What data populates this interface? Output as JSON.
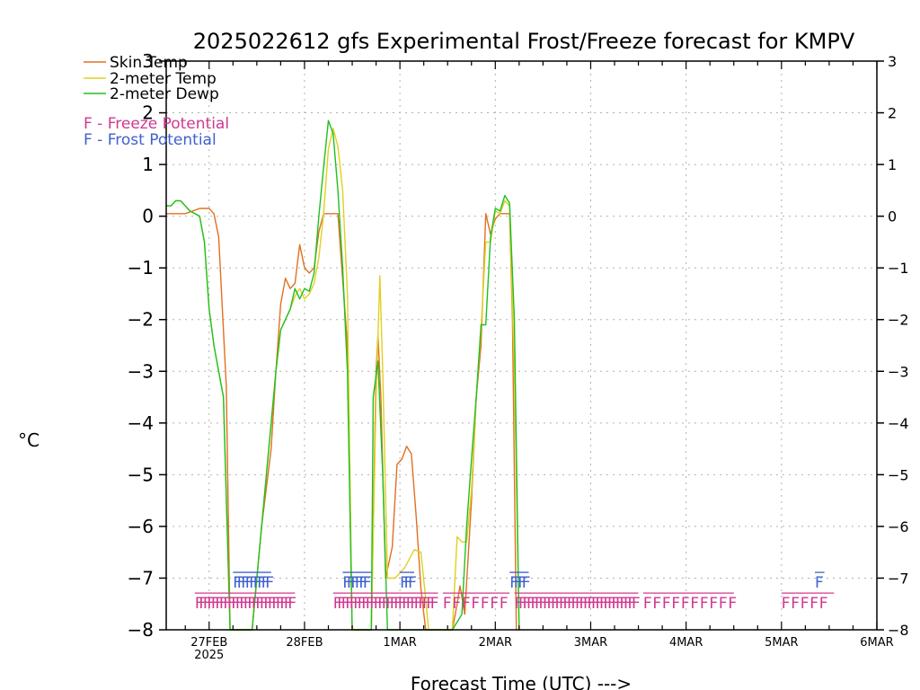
{
  "chart_data": {
    "type": "line",
    "title": "2025022612 gfs Experimental Frost/Freeze forecast for KMPV",
    "xlabel": "Forecast Time (UTC) --->",
    "ylabel": "°C",
    "ylim": [
      -8,
      3
    ],
    "yticks": [
      -8,
      -7,
      -6,
      -5,
      -4,
      -3,
      -2,
      -1,
      0,
      1,
      2,
      3
    ],
    "ytick_labels": [
      "−8",
      "−7",
      "−6",
      "−5",
      "−4",
      "−3",
      "−2",
      "−1",
      "0",
      "1",
      "2",
      "3"
    ],
    "xlim_days": [
      -0.45,
      7.0
    ],
    "xticks": [
      {
        "day": 0,
        "label": "27FEB",
        "sublabel": "2025"
      },
      {
        "day": 1,
        "label": "28FEB",
        "sublabel": ""
      },
      {
        "day": 2,
        "label": "1MAR",
        "sublabel": ""
      },
      {
        "day": 3,
        "label": "2MAR",
        "sublabel": ""
      },
      {
        "day": 4,
        "label": "3MAR",
        "sublabel": ""
      },
      {
        "day": 5,
        "label": "4MAR",
        "sublabel": ""
      },
      {
        "day": 6,
        "label": "5MAR",
        "sublabel": ""
      },
      {
        "day": 7,
        "label": "6MAR",
        "sublabel": ""
      }
    ],
    "grid": true,
    "legend_position": "top-left",
    "series": [
      {
        "name": "Skin Temp",
        "color": "#e07020",
        "points": [
          [
            -0.45,
            0.05
          ],
          [
            -0.25,
            0.05
          ],
          [
            -0.1,
            0.15
          ],
          [
            0.0,
            0.15
          ],
          [
            0.05,
            0.05
          ],
          [
            0.1,
            -0.4
          ],
          [
            0.18,
            -3.3
          ],
          [
            0.22,
            -8.0
          ],
          [
            0.45,
            -8.0
          ],
          [
            0.55,
            -6.0
          ],
          [
            0.65,
            -4.5
          ],
          [
            0.7,
            -3.0
          ],
          [
            0.75,
            -1.7
          ],
          [
            0.8,
            -1.2
          ],
          [
            0.85,
            -1.4
          ],
          [
            0.9,
            -1.3
          ],
          [
            0.95,
            -0.55
          ],
          [
            1.0,
            -1.0
          ],
          [
            1.05,
            -1.1
          ],
          [
            1.1,
            -1.0
          ],
          [
            1.15,
            -0.3
          ],
          [
            1.2,
            0.05
          ],
          [
            1.35,
            0.05
          ],
          [
            1.45,
            -2.5
          ],
          [
            1.5,
            -8.0
          ],
          [
            1.7,
            -8.0
          ],
          [
            1.75,
            -3.0
          ],
          [
            1.77,
            -2.3
          ],
          [
            1.8,
            -3.5
          ],
          [
            1.85,
            -7.0
          ],
          [
            1.92,
            -6.4
          ],
          [
            1.97,
            -4.8
          ],
          [
            2.02,
            -4.7
          ],
          [
            2.07,
            -4.45
          ],
          [
            2.12,
            -4.6
          ],
          [
            2.17,
            -5.8
          ],
          [
            2.22,
            -7.2
          ],
          [
            2.27,
            -8.0
          ],
          [
            2.55,
            -8.0
          ],
          [
            2.6,
            -7.5
          ],
          [
            2.63,
            -7.15
          ],
          [
            2.68,
            -7.7
          ],
          [
            2.75,
            -5.5
          ],
          [
            2.8,
            -3.5
          ],
          [
            2.85,
            -2.5
          ],
          [
            2.9,
            0.05
          ],
          [
            2.95,
            -0.35
          ],
          [
            3.0,
            -0.05
          ],
          [
            3.05,
            0.05
          ],
          [
            3.15,
            0.05
          ],
          [
            3.18,
            -2.0
          ],
          [
            3.22,
            -8.0
          ]
        ]
      },
      {
        "name": "2-meter Temp",
        "color": "#e0d020",
        "points": [
          [
            -0.45,
            0.2
          ],
          [
            -0.4,
            0.2
          ],
          [
            -0.35,
            0.3
          ],
          [
            -0.3,
            0.3
          ],
          [
            -0.2,
            0.1
          ],
          [
            -0.15,
            0.05
          ],
          [
            -0.1,
            0.0
          ],
          [
            -0.05,
            -0.5
          ],
          [
            0.0,
            -1.8
          ],
          [
            0.05,
            -2.5
          ],
          [
            0.15,
            -3.5
          ],
          [
            0.22,
            -8.0
          ],
          [
            0.45,
            -8.0
          ],
          [
            0.55,
            -6.0
          ],
          [
            0.65,
            -4.0
          ],
          [
            0.7,
            -3.0
          ],
          [
            0.75,
            -2.2
          ],
          [
            0.8,
            -2.0
          ],
          [
            0.85,
            -1.8
          ],
          [
            0.9,
            -1.55
          ],
          [
            0.95,
            -1.4
          ],
          [
            1.0,
            -1.6
          ],
          [
            1.05,
            -1.5
          ],
          [
            1.1,
            -1.3
          ],
          [
            1.15,
            -0.8
          ],
          [
            1.2,
            0.05
          ],
          [
            1.25,
            1.3
          ],
          [
            1.3,
            1.7
          ],
          [
            1.35,
            1.35
          ],
          [
            1.4,
            0.5
          ],
          [
            1.45,
            -1.5
          ],
          [
            1.5,
            -8.0
          ],
          [
            1.7,
            -8.0
          ],
          [
            1.75,
            -3.5
          ],
          [
            1.79,
            -1.15
          ],
          [
            1.82,
            -3.0
          ],
          [
            1.87,
            -7.0
          ],
          [
            1.95,
            -7.0
          ],
          [
            2.05,
            -6.8
          ],
          [
            2.15,
            -6.45
          ],
          [
            2.22,
            -6.5
          ],
          [
            2.27,
            -7.4
          ],
          [
            2.3,
            -8.0
          ],
          [
            2.55,
            -8.0
          ],
          [
            2.6,
            -6.2
          ],
          [
            2.65,
            -6.3
          ],
          [
            2.7,
            -6.3
          ],
          [
            2.75,
            -5.3
          ],
          [
            2.8,
            -3.5
          ],
          [
            2.85,
            -2.2
          ],
          [
            2.9,
            -0.5
          ],
          [
            2.95,
            -0.5
          ],
          [
            3.0,
            0.1
          ],
          [
            3.05,
            0.05
          ],
          [
            3.1,
            0.3
          ],
          [
            3.15,
            0.2
          ],
          [
            3.2,
            -3.0
          ],
          [
            3.25,
            -8.0
          ]
        ]
      },
      {
        "name": "2-meter Dewp",
        "color": "#20c020",
        "points": [
          [
            -0.45,
            0.2
          ],
          [
            -0.4,
            0.2
          ],
          [
            -0.35,
            0.3
          ],
          [
            -0.3,
            0.3
          ],
          [
            -0.2,
            0.1
          ],
          [
            -0.15,
            0.05
          ],
          [
            -0.1,
            0.0
          ],
          [
            -0.05,
            -0.5
          ],
          [
            0.0,
            -1.8
          ],
          [
            0.05,
            -2.5
          ],
          [
            0.15,
            -3.5
          ],
          [
            0.22,
            -8.0
          ],
          [
            0.45,
            -8.0
          ],
          [
            0.55,
            -6.0
          ],
          [
            0.65,
            -4.0
          ],
          [
            0.7,
            -3.0
          ],
          [
            0.75,
            -2.2
          ],
          [
            0.8,
            -2.0
          ],
          [
            0.85,
            -1.8
          ],
          [
            0.9,
            -1.4
          ],
          [
            0.95,
            -1.6
          ],
          [
            1.0,
            -1.4
          ],
          [
            1.05,
            -1.45
          ],
          [
            1.1,
            -1.1
          ],
          [
            1.15,
            0.0
          ],
          [
            1.2,
            0.95
          ],
          [
            1.25,
            1.85
          ],
          [
            1.3,
            1.6
          ],
          [
            1.35,
            0.5
          ],
          [
            1.4,
            -1.0
          ],
          [
            1.45,
            -3.0
          ],
          [
            1.5,
            -8.0
          ],
          [
            1.7,
            -8.0
          ],
          [
            1.72,
            -3.5
          ],
          [
            1.77,
            -2.8
          ],
          [
            1.82,
            -5.0
          ],
          [
            1.87,
            -8.0
          ],
          [
            2.55,
            -8.0
          ],
          [
            2.65,
            -7.7
          ],
          [
            2.7,
            -6.0
          ],
          [
            2.75,
            -4.7
          ],
          [
            2.8,
            -3.5
          ],
          [
            2.85,
            -2.1
          ],
          [
            2.9,
            -2.1
          ],
          [
            2.95,
            -0.4
          ],
          [
            3.0,
            0.15
          ],
          [
            3.05,
            0.1
          ],
          [
            3.1,
            0.4
          ],
          [
            3.15,
            0.25
          ],
          [
            3.2,
            -2.0
          ],
          [
            3.25,
            -8.0
          ]
        ]
      }
    ],
    "potential_rows": [
      {
        "name": "Freeze Potential",
        "symbol": "F",
        "color": "#d03890",
        "level": -7.55,
        "segments": [
          {
            "start": -0.15,
            "end": 0.9,
            "dense": true
          },
          {
            "start": 1.3,
            "end": 2.4,
            "dense": true
          },
          {
            "start": 2.45,
            "end": 3.15,
            "dense": false
          },
          {
            "start": 3.2,
            "end": 4.5,
            "dense": true
          },
          {
            "start": 4.55,
            "end": 5.5,
            "dense": false
          },
          {
            "start": 6.0,
            "end": 6.55,
            "dense": false
          }
        ]
      },
      {
        "name": "Frost Potential",
        "symbol": "F",
        "color": "#4060d0",
        "level": -7.15,
        "segments": [
          {
            "start": 0.25,
            "end": 0.65,
            "dense": true
          },
          {
            "start": 1.4,
            "end": 1.7,
            "dense": true
          },
          {
            "start": 2.0,
            "end": 2.15,
            "dense": true
          },
          {
            "start": 3.15,
            "end": 3.35,
            "dense": true
          },
          {
            "start": 6.35,
            "end": 6.45,
            "dense": false
          }
        ]
      }
    ],
    "legend": [
      {
        "label": "Skin Temp",
        "color": "#e07020",
        "kind": "line"
      },
      {
        "label": "2-meter Temp",
        "color": "#e0d020",
        "kind": "line"
      },
      {
        "label": "2-meter Dewp",
        "color": "#20c020",
        "kind": "line"
      },
      {
        "label": "F - Freeze Potential",
        "color": "#d03890",
        "kind": "text"
      },
      {
        "label": "F - Frost Potential",
        "color": "#4060d0",
        "kind": "text"
      }
    ]
  }
}
